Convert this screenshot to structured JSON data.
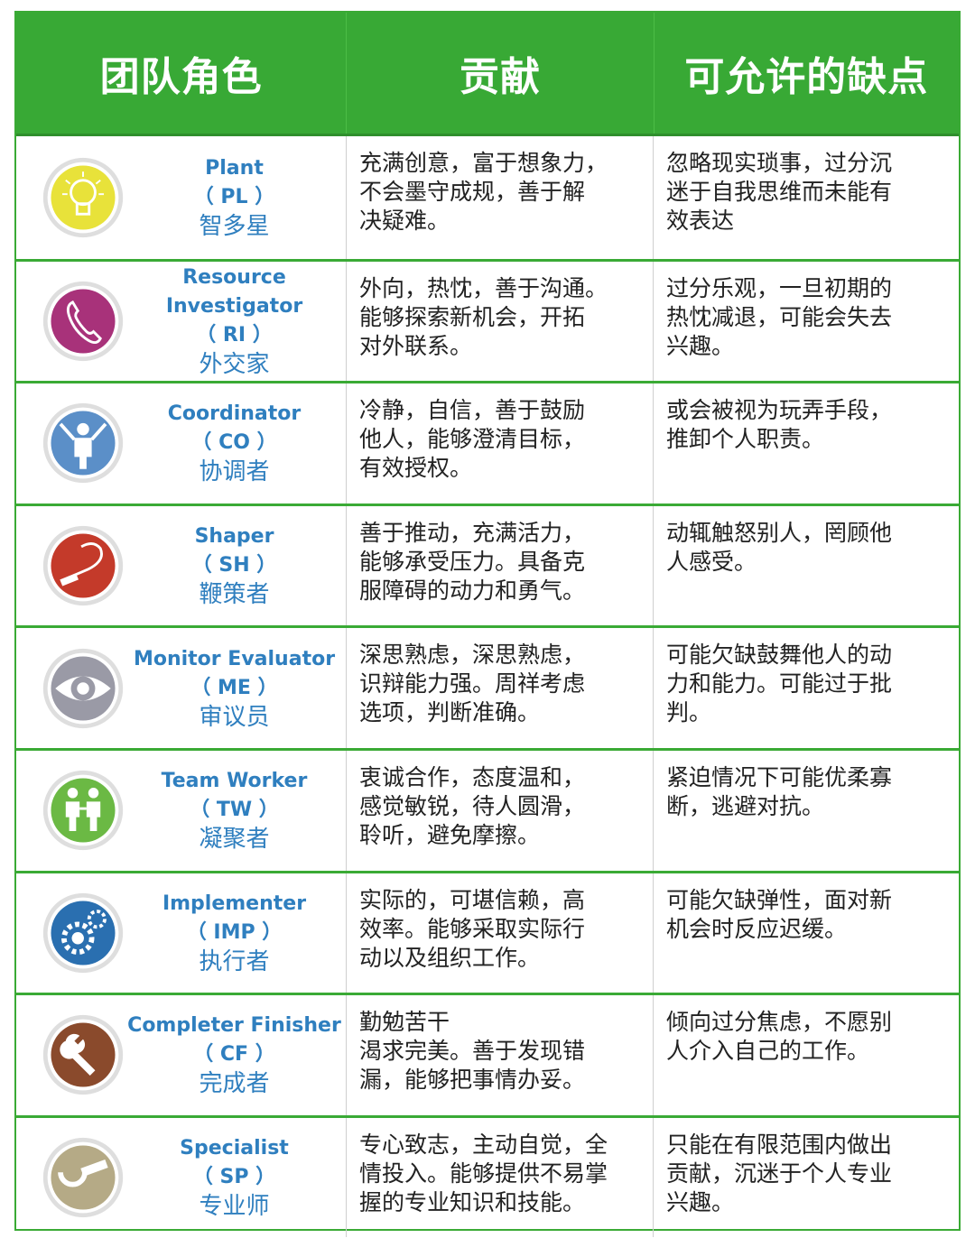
{
  "headers": {
    "role": "团队角色",
    "contribution": "贡献",
    "weakness": "可允许的缺点"
  },
  "rows": [
    {
      "icon": "lightbulb-icon",
      "en": "Plant",
      "abbr": "（ PL ）",
      "cn": "智多星",
      "contribution": "充满创意，富于想象力，\n不会墨守成规，善于解\n决疑难。",
      "weakness": "忽略现实琐事，过分沉\n迷于自我思维而未能有\n效表达"
    },
    {
      "icon": "telephone-icon",
      "en": "Resource Investigator",
      "abbr": "（ RI ）",
      "cn": "外交家",
      "contribution": "外向，热忱，善于沟通。\n能够探索新机会，开拓\n对外联系。",
      "weakness": "过分乐观，一旦初期的\n热忱减退，可能会失去\n兴趣。"
    },
    {
      "icon": "conductor-icon",
      "en": "Coordinator",
      "abbr": "（ CO ）",
      "cn": "协调者",
      "contribution": "冷静，自信，善于鼓励\n他人，能够澄清目标，\n有效授权。",
      "weakness": "或会被视为玩弄手段，\n推卸个人职责。"
    },
    {
      "icon": "whip-icon",
      "en": "Shaper",
      "abbr": "（ SH ）",
      "cn": "鞭策者",
      "contribution": "善于推动，充满活力，\n能够承受压力。具备克\n服障碍的动力和勇气。",
      "weakness": "动辄触怒别人，罔顾他\n人感受。"
    },
    {
      "icon": "eye-icon",
      "en": "Monitor Evaluator",
      "abbr": "（ ME ）",
      "cn": "审议员",
      "contribution": "深思熟虑，深思熟虑，\n识辩能力强。周祥考虑\n选项，判断准确。",
      "weakness": "可能欠缺鼓舞他人的动\n力和能力。可能过于批\n判。"
    },
    {
      "icon": "people-icon",
      "en": "Team Worker",
      "abbr": "（ TW ）",
      "cn": "凝聚者",
      "contribution": "衷诚合作，态度温和，\n感觉敏锐，待人圆滑，\n聆听，避免摩擦。",
      "weakness": "紧迫情况下可能优柔寡\n断，逃避对抗。"
    },
    {
      "icon": "gear-icon",
      "en": "Implementer",
      "abbr": "（ IMP ）",
      "cn": "执行者",
      "contribution": "实际的，可堪信赖，高\n效率。能够采取实际行\n动以及组织工作。",
      "weakness": "可能欠缺弹性，面对新\n机会时反应迟缓。"
    },
    {
      "icon": "wrench-icon",
      "en": "Completer Finisher",
      "abbr": "（ CF ）",
      "cn": "完成者",
      "contribution": "勤勉苦干\n渴求完美。善于发现错\n漏，能够把事情办妥。",
      "weakness": "倾向过分焦虑，不愿别\n人介入自己的工作。"
    },
    {
      "icon": "micrometer-icon",
      "en": "Specialist",
      "abbr": "（ SP ）",
      "cn": "专业师",
      "contribution": "专心致志，主动自觉，全\n情投入。能够提供不易掌\n握的专业知识和技能。",
      "weakness": "只能在有限范围内做出\n贡献，沉迷于个人专业\n兴趣。"
    }
  ],
  "colors": {
    "header": "#38a935",
    "role_text": "#2f7fbf",
    "icon_colors": [
      "#e8e23a",
      "#a8327a",
      "#5b8fc8",
      "#c43a2a",
      "#9a9aa6",
      "#6bb944",
      "#2a6fb0",
      "#8a4a2c",
      "#b5aa86"
    ]
  }
}
